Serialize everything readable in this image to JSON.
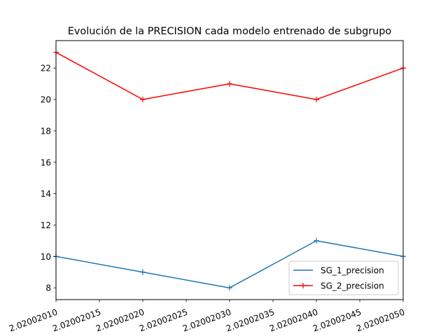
{
  "chart_data": {
    "type": "line",
    "title": "Evolución de la PRECISION cada modelo entrenado de subgrupo",
    "xlabel": "",
    "ylabel": "",
    "x": [
      2.0200201,
      2.0200202,
      2.0200203,
      2.0200204,
      2.0200205
    ],
    "xlim": [
      2.0200201,
      2.0200205
    ],
    "ylim": [
      7.25,
      23.75
    ],
    "x_ticks": [
      2.0200201,
      2.02002015,
      2.0200202,
      2.02002025,
      2.0200203,
      2.02002035,
      2.0200204,
      2.02002045,
      2.0200205
    ],
    "x_tick_labels": [
      "2.02002010",
      "2.02002015",
      "2.02002020",
      "2.02002025",
      "2.02002030",
      "2.02002035",
      "2.02002040",
      "2.02002045",
      "2.02002050"
    ],
    "y_ticks": [
      8,
      10,
      12,
      14,
      16,
      18,
      20,
      22
    ],
    "y_tick_labels": [
      "8",
      "10",
      "12",
      "14",
      "16",
      "18",
      "20",
      "22"
    ],
    "grid": false,
    "legend_position": "lower-right",
    "series": [
      {
        "name": "SG_1_precision",
        "values": [
          10,
          9,
          8,
          11,
          10
        ],
        "color": "#1f77b4",
        "marker": "+"
      },
      {
        "name": "SG_2_precision",
        "values": [
          23,
          20,
          21,
          20,
          22
        ],
        "color": "#ff0000",
        "marker": "+"
      }
    ]
  }
}
